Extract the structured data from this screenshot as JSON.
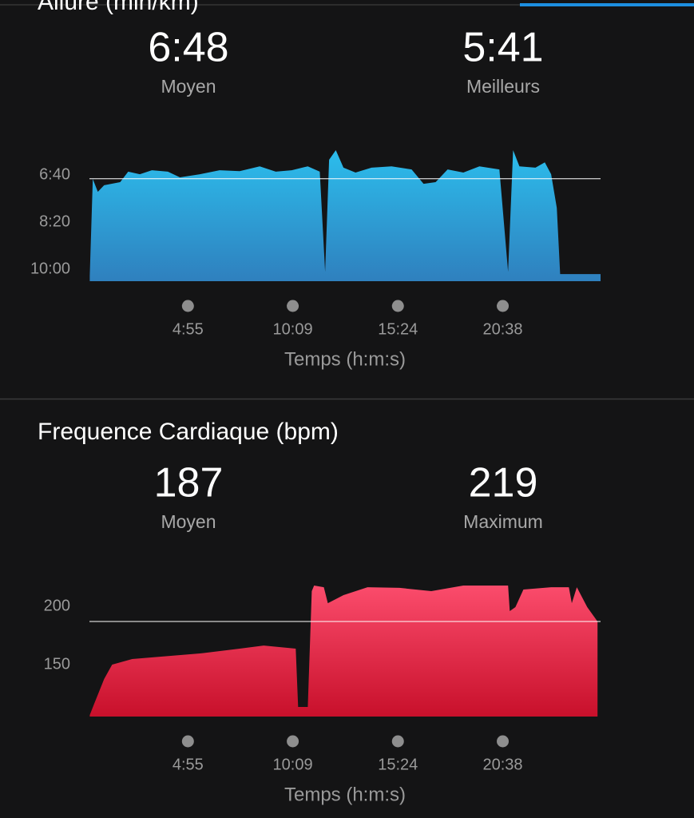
{
  "chart_data": [
    {
      "type": "area",
      "title": "Allure (min/km)",
      "stats": [
        {
          "value": 6.8,
          "label": "6:48",
          "name": "Moyen"
        },
        {
          "value": 5.683,
          "label": "5:41",
          "name": "Meilleurs"
        }
      ],
      "x": [
        1,
        10,
        25,
        44,
        92,
        116,
        151,
        187,
        235,
        271,
        331,
        390,
        450,
        510,
        558,
        606,
        654,
        690,
        706,
        718,
        738,
        761,
        797,
        845,
        905,
        965,
        1001,
        1037,
        1073,
        1120,
        1168,
        1228,
        1254,
        1269,
        1288,
        1336,
        1364,
        1383,
        1400,
        1410,
        1531
      ],
      "values": [
        10.23,
        6.81,
        7.26,
        7.03,
        6.92,
        6.55,
        6.64,
        6.5,
        6.55,
        6.75,
        6.64,
        6.5,
        6.53,
        6.36,
        6.55,
        6.5,
        6.36,
        6.55,
        10.09,
        6.13,
        5.79,
        6.41,
        6.58,
        6.41,
        6.36,
        6.47,
        6.98,
        6.92,
        6.47,
        6.58,
        6.36,
        6.47,
        10.09,
        5.79,
        6.36,
        6.41,
        6.22,
        6.64,
        7.83,
        10.17,
        10.17
      ],
      "gradient": [
        "#2cbdec",
        "#2f80be"
      ],
      "xlim": [
        0,
        1531
      ],
      "xticks": [
        {
          "value": 295,
          "label": "4:55"
        },
        {
          "value": 609,
          "label": "10:09"
        },
        {
          "value": 924,
          "label": "15:24"
        },
        {
          "value": 1238,
          "label": "20:38"
        }
      ],
      "ylim": [
        10.42,
        5.5
      ],
      "yticks": [
        {
          "value": 6.667,
          "label": "6:40"
        },
        {
          "value": 8.333,
          "label": "8:20"
        },
        {
          "value": 10,
          "label": "10:00"
        }
      ],
      "xlabel": "Temps (h:m:s)"
    },
    {
      "type": "area",
      "title": "Frequence Cardiaque (bpm)",
      "stats": [
        {
          "value": 187,
          "name": "Moyen"
        },
        {
          "value": 219,
          "name": "Maximum"
        }
      ],
      "x": [
        1,
        15,
        44,
        68,
        128,
        211,
        331,
        450,
        522,
        618,
        625,
        654,
        666,
        673,
        702,
        714,
        761,
        833,
        929,
        1024,
        1120,
        1216,
        1254,
        1259,
        1276,
        1300,
        1383,
        1436,
        1445,
        1460,
        1491,
        1522
      ],
      "values": [
        106.8,
        117.1,
        137.7,
        150,
        154.8,
        156.8,
        159.6,
        163.7,
        166.4,
        163.7,
        113.7,
        113.7,
        213,
        217.8,
        216.4,
        202.7,
        209.6,
        216.4,
        215.8,
        213,
        217.8,
        217.8,
        217.8,
        195.9,
        199.3,
        214.4,
        216.4,
        216.4,
        202.7,
        216.4,
        199.3,
        187
      ],
      "gradient": [
        "#fb4c6c",
        "#c8102b"
      ],
      "xlim": [
        0,
        1531
      ],
      "xticks": [
        {
          "value": 295,
          "label": "4:55"
        },
        {
          "value": 609,
          "label": "10:09"
        },
        {
          "value": 924,
          "label": "15:24"
        },
        {
          "value": 1238,
          "label": "20:38"
        }
      ],
      "ylim": [
        105.5,
        230
      ],
      "yticks": [
        200,
        150
      ],
      "xlabel": "Temps (h:m:s)"
    }
  ]
}
